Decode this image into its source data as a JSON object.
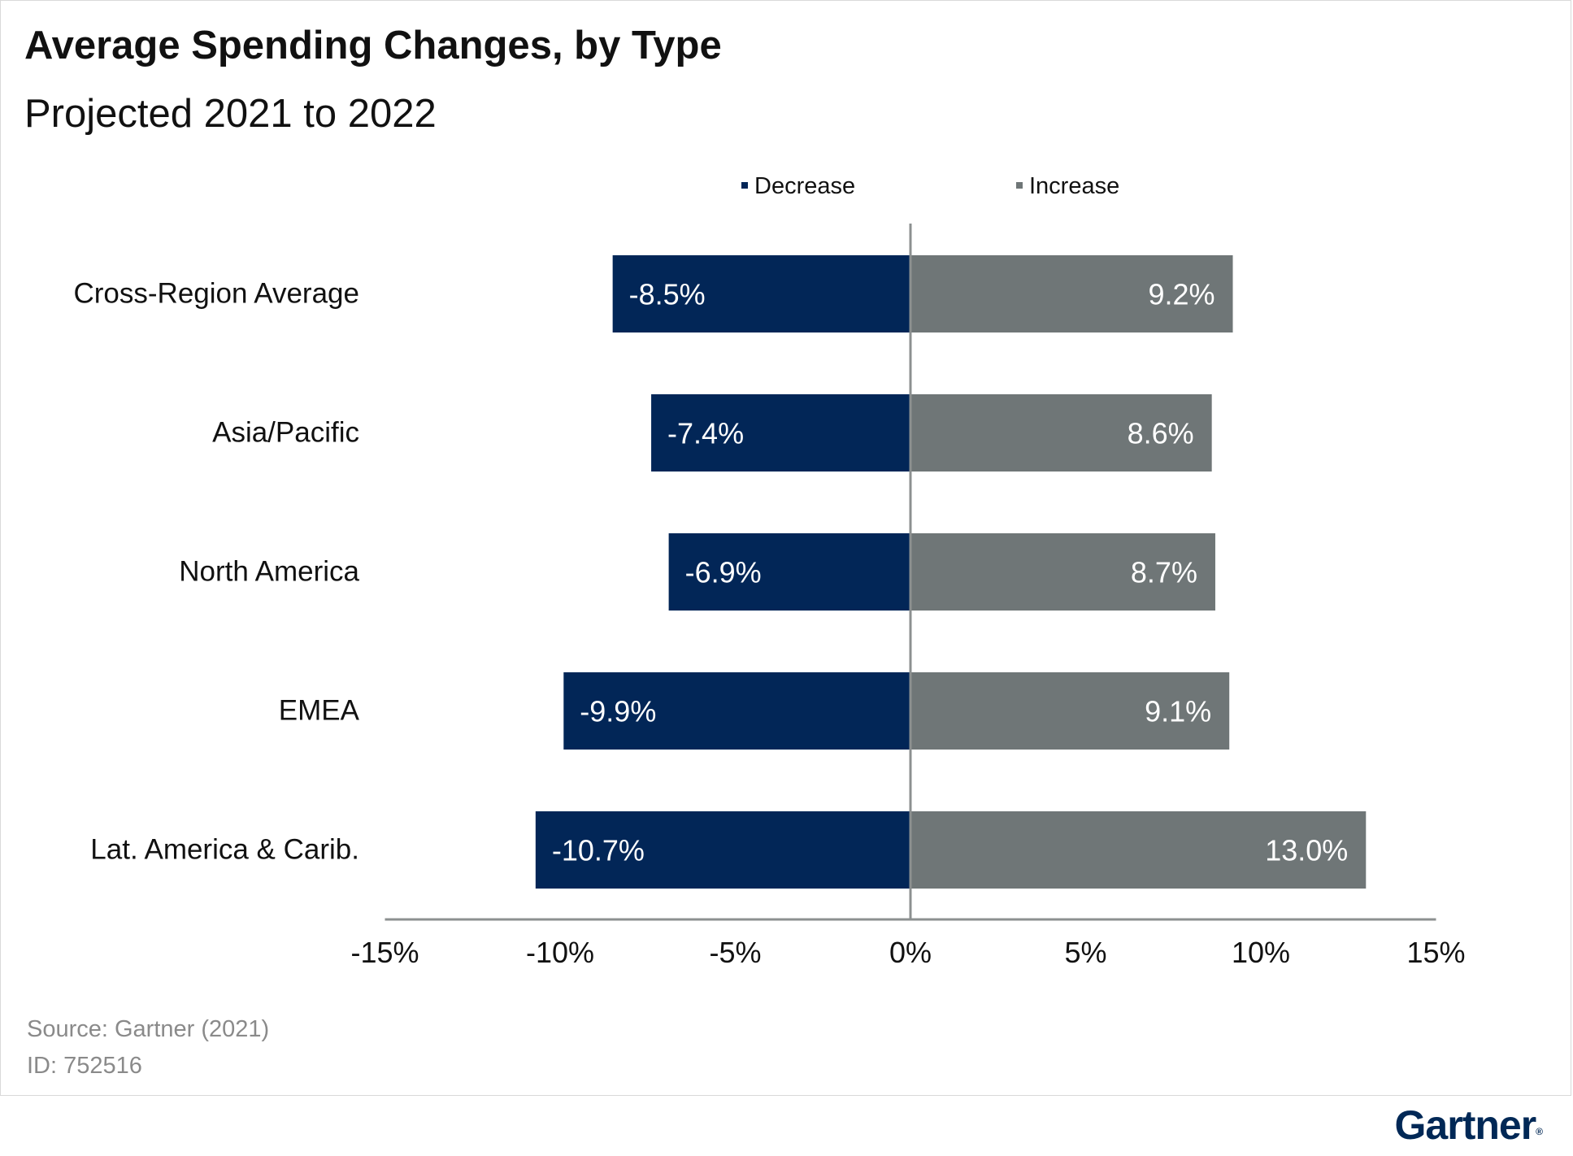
{
  "title": "Average Spending Changes, by Type",
  "subtitle": "Projected 2021 to 2022",
  "source": "Source: Gartner (2021)",
  "id_label": "ID: 752516",
  "brand": "Gartner",
  "colors": {
    "decrease": "#022657",
    "increase": "#6f7677",
    "axis": "#8c9090",
    "text": "#111111"
  },
  "chart_data": {
    "type": "bar",
    "orientation": "horizontal",
    "stacked": "diverging",
    "categories": [
      "Cross-Region Average",
      "Asia/Pacific",
      "North America",
      "EMEA",
      "Lat. America & Carib."
    ],
    "series": [
      {
        "name": "Decrease",
        "values": [
          -8.5,
          -7.4,
          -6.9,
          -9.9,
          -10.7
        ],
        "labels": [
          "-8.5%",
          "-7.4%",
          "-6.9%",
          "-9.9%",
          "-10.7%"
        ]
      },
      {
        "name": "Increase",
        "values": [
          9.2,
          8.6,
          8.7,
          9.1,
          13.0
        ],
        "labels": [
          "9.2%",
          "8.6%",
          "8.7%",
          "9.1%",
          "13.0%"
        ]
      }
    ],
    "xlim": [
      -15,
      15
    ],
    "xticks": [
      -15,
      -10,
      -5,
      0,
      5,
      10,
      15
    ],
    "xtick_labels": [
      "-15%",
      "-10%",
      "-5%",
      "0%",
      "5%",
      "10%",
      "15%"
    ],
    "legend_position": "top",
    "grid": false
  }
}
